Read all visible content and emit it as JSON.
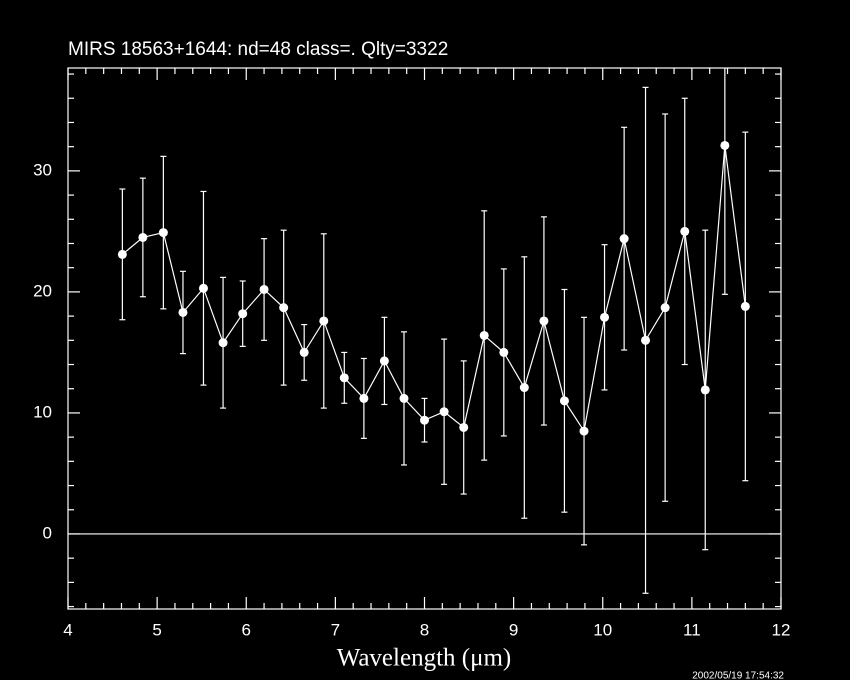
{
  "chart_data": {
    "type": "errorline",
    "title": "MIRS 18563+1644:    nd=48   class=.   Qlty=3322",
    "xlabel": "Wavelength (μm)",
    "timestamp": "2002/05/19 17:54:32",
    "color": "#ffffff",
    "x": [
      4.61,
      4.84,
      5.07,
      5.29,
      5.52,
      5.74,
      5.96,
      6.2,
      6.42,
      6.65,
      6.87,
      7.1,
      7.32,
      7.55,
      7.77,
      8.0,
      8.22,
      8.44,
      8.67,
      8.89,
      9.12,
      9.34,
      9.57,
      9.79,
      10.02,
      10.24,
      10.48,
      10.7,
      10.92,
      11.15,
      11.37,
      11.6
    ],
    "values": [
      23.1,
      24.5,
      24.9,
      18.3,
      20.3,
      15.8,
      18.2,
      20.2,
      18.7,
      15.0,
      17.6,
      12.9,
      11.2,
      14.3,
      11.2,
      9.4,
      10.1,
      8.8,
      16.4,
      15.0,
      12.1,
      17.6,
      11.0,
      8.5,
      17.9,
      24.4,
      16.0,
      18.7,
      25.0,
      11.9,
      32.1,
      18.8
    ],
    "errors": [
      5.4,
      4.9,
      6.3,
      3.4,
      8.0,
      5.4,
      2.7,
      4.2,
      6.4,
      2.3,
      7.2,
      2.1,
      3.3,
      3.6,
      5.5,
      1.8,
      6.0,
      5.5,
      10.3,
      6.9,
      10.8,
      8.6,
      9.2,
      9.4,
      6.0,
      9.2,
      20.9,
      16.0,
      11.0,
      13.2,
      12.3,
      14.4
    ],
    "xlim": [
      4,
      12
    ],
    "ylim": [
      -6.2,
      38.5
    ],
    "xticks": [
      4,
      5,
      6,
      7,
      8,
      9,
      10,
      11,
      12
    ],
    "yticks": [
      0,
      10,
      20,
      30
    ],
    "xminorticks": [
      4.2,
      4.4,
      4.6,
      4.8,
      5.2,
      5.4,
      5.6,
      5.8,
      6.2,
      6.4,
      6.6,
      6.8,
      7.2,
      7.4,
      7.6,
      7.8,
      8.2,
      8.4,
      8.6,
      8.8,
      9.2,
      9.4,
      9.6,
      9.8,
      10.2,
      10.4,
      10.6,
      10.8,
      11.2,
      11.4,
      11.6,
      11.8
    ],
    "yminorticks": [
      -6,
      -4,
      -2,
      2,
      4,
      6,
      8,
      12,
      14,
      16,
      18,
      22,
      24,
      26,
      28,
      32,
      34,
      36,
      38
    ],
    "hline": 0
  }
}
